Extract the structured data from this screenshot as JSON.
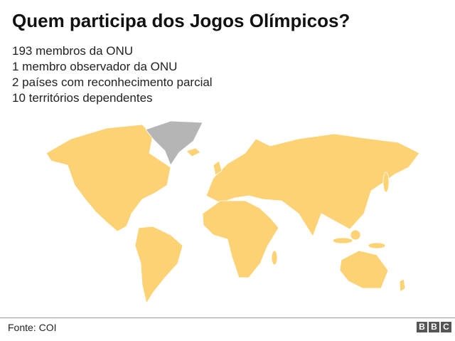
{
  "header": {
    "title": "Quem participa dos Jogos Olímpicos?",
    "lines": [
      "193 membros da ONU",
      "1 membro observador da ONU",
      "2 países com reconhecimento parcial",
      "10 territórios dependentes"
    ]
  },
  "footer": {
    "source": "Fonte: COI",
    "logo": [
      "B",
      "B",
      "C"
    ]
  }
}
